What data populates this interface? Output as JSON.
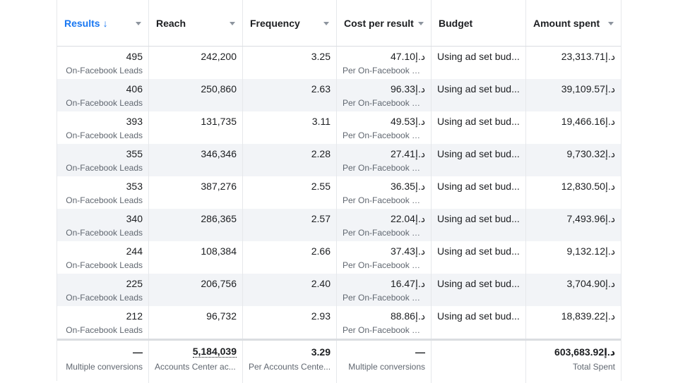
{
  "columns": [
    {
      "label": "Results",
      "sort_icon": "arrow-down-icon"
    },
    {
      "label": "Reach"
    },
    {
      "label": "Frequency"
    },
    {
      "label": "Cost per result"
    },
    {
      "label": "Budget"
    },
    {
      "label": "Amount spent"
    }
  ],
  "rows": [
    {
      "results": "495",
      "results_sub": "On-Facebook Leads",
      "reach": "242,200",
      "frequency": "3.25",
      "cost": "47.10د.إ",
      "cost_sub": "Per On-Facebook Le...",
      "budget": "Using ad set bud...",
      "spent": "23,313.71د.إ"
    },
    {
      "results": "406",
      "results_sub": "On-Facebook Leads",
      "reach": "250,860",
      "frequency": "2.63",
      "cost": "96.33د.إ",
      "cost_sub": "Per On-Facebook Le...",
      "budget": "Using ad set bud...",
      "spent": "39,109.57د.إ"
    },
    {
      "results": "393",
      "results_sub": "On-Facebook Leads",
      "reach": "131,735",
      "frequency": "3.11",
      "cost": "49.53د.إ",
      "cost_sub": "Per On-Facebook Le...",
      "budget": "Using ad set bud...",
      "spent": "19,466.16د.إ"
    },
    {
      "results": "355",
      "results_sub": "On-Facebook Leads",
      "reach": "346,346",
      "frequency": "2.28",
      "cost": "27.41د.إ",
      "cost_sub": "Per On-Facebook Le...",
      "budget": "Using ad set bud...",
      "spent": "9,730.32د.إ"
    },
    {
      "results": "353",
      "results_sub": "On-Facebook Leads",
      "reach": "387,276",
      "frequency": "2.55",
      "cost": "36.35د.إ",
      "cost_sub": "Per On-Facebook Le...",
      "budget": "Using ad set bud...",
      "spent": "12,830.50د.إ"
    },
    {
      "results": "340",
      "results_sub": "On-Facebook Leads",
      "reach": "286,365",
      "frequency": "2.57",
      "cost": "22.04د.إ",
      "cost_sub": "Per On-Facebook Le...",
      "budget": "Using ad set bud...",
      "spent": "7,493.96د.إ"
    },
    {
      "results": "244",
      "results_sub": "On-Facebook Leads",
      "reach": "108,384",
      "frequency": "2.66",
      "cost": "37.43د.إ",
      "cost_sub": "Per On-Facebook Le...",
      "budget": "Using ad set bud...",
      "spent": "9,132.12د.إ"
    },
    {
      "results": "225",
      "results_sub": "On-Facebook Leads",
      "reach": "206,756",
      "frequency": "2.40",
      "cost": "16.47د.إ",
      "cost_sub": "Per On-Facebook Le...",
      "budget": "Using ad set bud...",
      "spent": "3,704.90د.إ"
    },
    {
      "results": "212",
      "results_sub": "On-Facebook Leads",
      "reach": "96,732",
      "frequency": "2.93",
      "cost": "88.86د.إ",
      "cost_sub": "Per On-Facebook Le...",
      "budget": "Using ad set bud...",
      "spent": "18,839.22د.إ"
    }
  ],
  "totals": {
    "results": "—",
    "results_sub": "Multiple conversions",
    "reach": "5,184,039",
    "reach_sub": "Accounts Center ac...",
    "frequency": "3.29",
    "frequency_sub": "Per Accounts Cente...",
    "cost": "—",
    "cost_sub": "Multiple conversions",
    "budget": "",
    "spent": "603,683.92د.إ",
    "spent_sub": "Total Spent"
  },
  "colors": {
    "accent": "#1877f2",
    "alt_row": "#f2f4f7"
  }
}
